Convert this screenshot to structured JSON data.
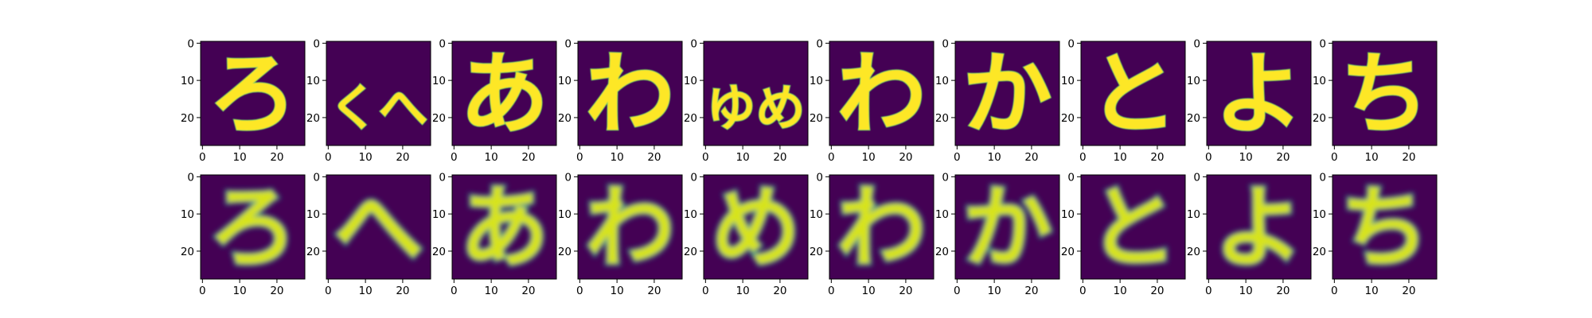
{
  "chart_data": {
    "type": "heatmap",
    "layout": {
      "rows": 2,
      "cols": 10
    },
    "image_size": [
      28,
      28
    ],
    "colormap": "viridis",
    "xlim": [
      0,
      27
    ],
    "ylim": [
      0,
      27
    ],
    "xticks": [
      0,
      10,
      20
    ],
    "yticks": [
      0,
      10,
      20
    ],
    "tick_labels": [
      "0",
      "10",
      "20"
    ],
    "background_color": "#440154",
    "rows": [
      {
        "name": "",
        "panels": [
          {
            "glyph": "ろ",
            "style": "sharp"
          },
          {
            "glyph": "くへ",
            "style": "sharp"
          },
          {
            "glyph": "あ",
            "style": "sharp"
          },
          {
            "glyph": "わ",
            "style": "sharp"
          },
          {
            "glyph": "ゆめ",
            "style": "sharp"
          },
          {
            "glyph": "わ",
            "style": "sharp"
          },
          {
            "glyph": "か",
            "style": "sharp"
          },
          {
            "glyph": "と",
            "style": "sharp"
          },
          {
            "glyph": "よ",
            "style": "sharp"
          },
          {
            "glyph": "ち",
            "style": "sharp"
          }
        ]
      },
      {
        "name": "",
        "panels": [
          {
            "glyph": "ろ",
            "style": "blurred"
          },
          {
            "glyph": "へ",
            "style": "blurred"
          },
          {
            "glyph": "あ",
            "style": "blurred"
          },
          {
            "glyph": "わ",
            "style": "blurred"
          },
          {
            "glyph": "め",
            "style": "blurred"
          },
          {
            "glyph": "わ",
            "style": "blurred"
          },
          {
            "glyph": "か",
            "style": "blurred"
          },
          {
            "glyph": "と",
            "style": "blurred"
          },
          {
            "glyph": "よ",
            "style": "blurred"
          },
          {
            "glyph": "ち",
            "style": "blurred"
          }
        ]
      }
    ]
  }
}
